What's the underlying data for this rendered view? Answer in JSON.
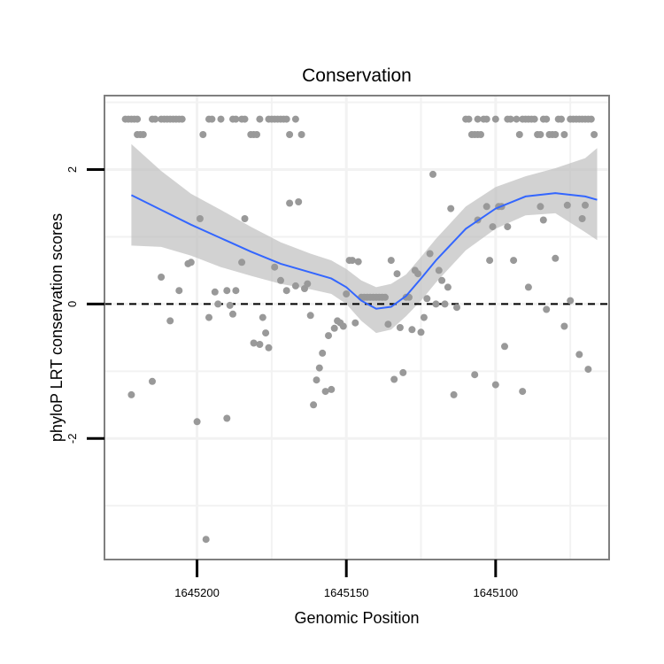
{
  "chart_data": {
    "type": "scatter",
    "title": "Conservation",
    "xlabel": "Genomic Position",
    "ylabel": "phyloP LRT conservation scores",
    "x_reversed": true,
    "xlim": [
      1645231,
      1645062
    ],
    "ylim": [
      -3.8,
      3.1
    ],
    "x_ticks": [
      {
        "value": 1645200,
        "label": "1645200"
      },
      {
        "value": 1645150,
        "label": "1645150"
      },
      {
        "value": 1645100,
        "label": "1645100"
      }
    ],
    "y_ticks": [
      {
        "value": 2,
        "label": "2"
      },
      {
        "value": 0,
        "label": "0"
      },
      {
        "value": -2,
        "label": "-2"
      }
    ],
    "x_minor_gridlines": [
      1645175,
      1645125,
      1645075
    ],
    "y_minor_gridlines": [
      3,
      1,
      -1,
      -3
    ],
    "reference_line": {
      "y": 0,
      "style": "dashed",
      "color": "#000000"
    },
    "colors": {
      "points": "#999999",
      "smooth_line": "#3366ff",
      "confidence_band": "#bfbfbf",
      "grid": "#f2f2f2",
      "panel_border": "#7f7f7f"
    },
    "points": [
      [
        1645222,
        -1.35
      ],
      [
        1645215,
        -1.15
      ],
      [
        1645212,
        0.4
      ],
      [
        1645209,
        -0.25
      ],
      [
        1645206,
        0.2
      ],
      [
        1645203,
        0.6
      ],
      [
        1645202,
        0.62
      ],
      [
        1645200,
        -1.75
      ],
      [
        1645199,
        1.27
      ],
      [
        1645197,
        -3.5
      ],
      [
        1645196,
        -0.2
      ],
      [
        1645194,
        0.18
      ],
      [
        1645193,
        0.0
      ],
      [
        1645190,
        -1.7
      ],
      [
        1645190,
        0.2
      ],
      [
        1645189,
        -0.02
      ],
      [
        1645188,
        -0.15
      ],
      [
        1645187,
        0.2
      ],
      [
        1645185,
        0.62
      ],
      [
        1645184,
        1.27
      ],
      [
        1645181,
        -0.58
      ],
      [
        1645179,
        -0.6
      ],
      [
        1645178,
        -0.2
      ],
      [
        1645177,
        -0.43
      ],
      [
        1645176,
        -0.65
      ],
      [
        1645174,
        0.55
      ],
      [
        1645172,
        0.35
      ],
      [
        1645170,
        0.2
      ],
      [
        1645169,
        1.5
      ],
      [
        1645167,
        0.27
      ],
      [
        1645166,
        1.52
      ],
      [
        1645164,
        0.23
      ],
      [
        1645163,
        0.3
      ],
      [
        1645162,
        -0.17
      ],
      [
        1645161,
        -1.5
      ],
      [
        1645160,
        -1.13
      ],
      [
        1645159,
        -0.95
      ],
      [
        1645158,
        -0.73
      ],
      [
        1645157,
        -1.3
      ],
      [
        1645156,
        -0.47
      ],
      [
        1645155,
        -1.27
      ],
      [
        1645154,
        -0.36
      ],
      [
        1645153,
        -0.25
      ],
      [
        1645152,
        -0.28
      ],
      [
        1645151,
        -0.33
      ],
      [
        1645150,
        0.15
      ],
      [
        1645149,
        0.65
      ],
      [
        1645148,
        0.65
      ],
      [
        1645147,
        -0.28
      ],
      [
        1645146,
        0.63
      ],
      [
        1645145,
        0.1
      ],
      [
        1645144,
        0.1
      ],
      [
        1645143,
        0.1
      ],
      [
        1645142,
        0.1
      ],
      [
        1645141,
        0.1
      ],
      [
        1645140,
        0.1
      ],
      [
        1645139,
        0.1
      ],
      [
        1645138,
        0.1
      ],
      [
        1645137,
        0.1
      ],
      [
        1645136,
        -0.3
      ],
      [
        1645135,
        0.65
      ],
      [
        1645134,
        -1.12
      ],
      [
        1645133,
        0.45
      ],
      [
        1645132,
        -0.35
      ],
      [
        1645131,
        -1.02
      ],
      [
        1645130,
        0.1
      ],
      [
        1645129,
        0.1
      ],
      [
        1645128,
        -0.38
      ],
      [
        1645127,
        0.5
      ],
      [
        1645126,
        0.45
      ],
      [
        1645125,
        -0.42
      ],
      [
        1645124,
        -0.2
      ],
      [
        1645123,
        0.08
      ],
      [
        1645122,
        0.75
      ],
      [
        1645121,
        1.93
      ],
      [
        1645120,
        0.0
      ],
      [
        1645119,
        0.5
      ],
      [
        1645118,
        0.35
      ],
      [
        1645117,
        0.0
      ],
      [
        1645116,
        0.25
      ],
      [
        1645115,
        1.42
      ],
      [
        1645114,
        -1.35
      ],
      [
        1645113,
        -0.05
      ],
      [
        1645107,
        -1.05
      ],
      [
        1645106,
        1.25
      ],
      [
        1645103,
        1.45
      ],
      [
        1645102,
        0.65
      ],
      [
        1645101,
        1.15
      ],
      [
        1645100,
        -1.2
      ],
      [
        1645099,
        1.45
      ],
      [
        1645098,
        1.45
      ],
      [
        1645097,
        -0.63
      ],
      [
        1645096,
        1.15
      ],
      [
        1645094,
        0.65
      ],
      [
        1645091,
        -1.3
      ],
      [
        1645089,
        0.25
      ],
      [
        1645085,
        1.45
      ],
      [
        1645084,
        1.25
      ],
      [
        1645083,
        -0.08
      ],
      [
        1645080,
        0.68
      ],
      [
        1645077,
        -0.33
      ],
      [
        1645076,
        1.47
      ],
      [
        1645075,
        0.05
      ],
      [
        1645072,
        -0.75
      ],
      [
        1645071,
        1.27
      ],
      [
        1645070,
        1.47
      ],
      [
        1645069,
        -0.97
      ],
      [
        1645224,
        2.75
      ],
      [
        1645223,
        2.75
      ],
      [
        1645222,
        2.75
      ],
      [
        1645221,
        2.75
      ],
      [
        1645220,
        2.75
      ],
      [
        1645220,
        2.52
      ],
      [
        1645219,
        2.52
      ],
      [
        1645218,
        2.52
      ],
      [
        1645215,
        2.75
      ],
      [
        1645214,
        2.75
      ],
      [
        1645212,
        2.75
      ],
      [
        1645211,
        2.75
      ],
      [
        1645210,
        2.75
      ],
      [
        1645209,
        2.75
      ],
      [
        1645208,
        2.75
      ],
      [
        1645207,
        2.75
      ],
      [
        1645206,
        2.75
      ],
      [
        1645205,
        2.75
      ],
      [
        1645198,
        2.52
      ],
      [
        1645196,
        2.75
      ],
      [
        1645195,
        2.75
      ],
      [
        1645192,
        2.75
      ],
      [
        1645188,
        2.75
      ],
      [
        1645187,
        2.75
      ],
      [
        1645185,
        2.75
      ],
      [
        1645184,
        2.75
      ],
      [
        1645182,
        2.52
      ],
      [
        1645181,
        2.52
      ],
      [
        1645180,
        2.52
      ],
      [
        1645179,
        2.75
      ],
      [
        1645176,
        2.75
      ],
      [
        1645175,
        2.75
      ],
      [
        1645174,
        2.75
      ],
      [
        1645173,
        2.75
      ],
      [
        1645172,
        2.75
      ],
      [
        1645171,
        2.75
      ],
      [
        1645170,
        2.75
      ],
      [
        1645169,
        2.52
      ],
      [
        1645167,
        2.75
      ],
      [
        1645165,
        2.52
      ],
      [
        1645110,
        2.75
      ],
      [
        1645109,
        2.75
      ],
      [
        1645108,
        2.52
      ],
      [
        1645107,
        2.52
      ],
      [
        1645106,
        2.52
      ],
      [
        1645106,
        2.75
      ],
      [
        1645105,
        2.52
      ],
      [
        1645104,
        2.75
      ],
      [
        1645103,
        2.75
      ],
      [
        1645100,
        2.75
      ],
      [
        1645096,
        2.75
      ],
      [
        1645095,
        2.75
      ],
      [
        1645093,
        2.75
      ],
      [
        1645092,
        2.52
      ],
      [
        1645091,
        2.75
      ],
      [
        1645090,
        2.75
      ],
      [
        1645089,
        2.75
      ],
      [
        1645088,
        2.75
      ],
      [
        1645087,
        2.75
      ],
      [
        1645086,
        2.52
      ],
      [
        1645085,
        2.52
      ],
      [
        1645084,
        2.75
      ],
      [
        1645083,
        2.75
      ],
      [
        1645082,
        2.52
      ],
      [
        1645081,
        2.52
      ],
      [
        1645080,
        2.52
      ],
      [
        1645079,
        2.75
      ],
      [
        1645078,
        2.75
      ],
      [
        1645077,
        2.52
      ],
      [
        1645075,
        2.75
      ],
      [
        1645074,
        2.75
      ],
      [
        1645073,
        2.75
      ],
      [
        1645072,
        2.75
      ],
      [
        1645071,
        2.75
      ],
      [
        1645070,
        2.75
      ],
      [
        1645069,
        2.75
      ],
      [
        1645068,
        2.75
      ],
      [
        1645067,
        2.52
      ]
    ],
    "smooth": {
      "x": [
        1645222,
        1645212,
        1645202,
        1645192,
        1645182,
        1645172,
        1645162,
        1645155,
        1645150,
        1645145,
        1645140,
        1645135,
        1645130,
        1645125,
        1645120,
        1645110,
        1645100,
        1645090,
        1645080,
        1645070,
        1645066
      ],
      "y": [
        1.62,
        1.4,
        1.18,
        0.98,
        0.78,
        0.6,
        0.47,
        0.38,
        0.25,
        0.05,
        -0.07,
        -0.04,
        0.12,
        0.38,
        0.65,
        1.12,
        1.42,
        1.6,
        1.65,
        1.6,
        1.55
      ],
      "lower": [
        0.87,
        0.85,
        0.72,
        0.55,
        0.42,
        0.3,
        0.22,
        0.15,
        0.0,
        -0.25,
        -0.43,
        -0.38,
        -0.18,
        0.05,
        0.32,
        0.8,
        1.12,
        1.32,
        1.35,
        1.07,
        0.95
      ],
      "upper": [
        2.38,
        1.98,
        1.64,
        1.4,
        1.15,
        0.92,
        0.75,
        0.65,
        0.52,
        0.35,
        0.25,
        0.3,
        0.44,
        0.7,
        0.97,
        1.45,
        1.74,
        1.9,
        2.02,
        2.17,
        2.32
      ]
    }
  }
}
